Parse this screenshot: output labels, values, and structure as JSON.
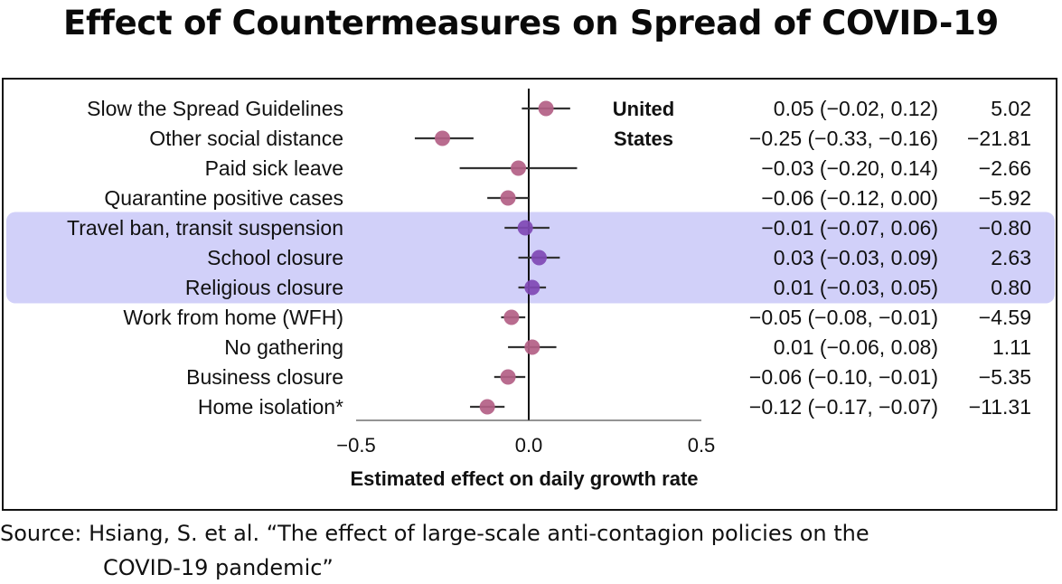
{
  "title": "Effect of Countermeasures on Spread of COVID-19",
  "source": {
    "line1": "Source: Hsiang, S. et al. “The effect of large-scale anti-contagion policies on the",
    "line2": "COVID-19 pandemic”"
  },
  "colors": {
    "point": "#b35f85",
    "point_highlight": "#7f48b4",
    "highlight_band": "#c9c8f8",
    "line": "#333333"
  },
  "chart_data": {
    "type": "forest",
    "country_label_line1": "United",
    "country_label_line2": "States",
    "xlabel": "Estimated effect on daily growth rate",
    "xlim": [
      -0.5,
      0.5
    ],
    "xticks": [
      "−0.5",
      "0.0",
      "0.5"
    ],
    "xtick_values": [
      -0.5,
      0.0,
      0.5
    ],
    "rows": [
      {
        "label": "Slow the Spread Guidelines",
        "estimate": 0.05,
        "lower": -0.02,
        "upper": 0.12,
        "ci_text": "0.05 (−0.02, 0.12)",
        "value_text": "5.02",
        "highlight": false
      },
      {
        "label": "Other social distance",
        "estimate": -0.25,
        "lower": -0.33,
        "upper": -0.16,
        "ci_text": "−0.25 (−0.33, −0.16)",
        "value_text": "−21.81",
        "highlight": false
      },
      {
        "label": "Paid sick leave",
        "estimate": -0.03,
        "lower": -0.2,
        "upper": 0.14,
        "ci_text": "−0.03 (−0.20, 0.14)",
        "value_text": "−2.66",
        "highlight": false
      },
      {
        "label": "Quarantine positive cases",
        "estimate": -0.06,
        "lower": -0.12,
        "upper": 0.0,
        "ci_text": "−0.06 (−0.12, 0.00)",
        "value_text": "−5.92",
        "highlight": false
      },
      {
        "label": "Travel ban, transit suspension",
        "estimate": -0.01,
        "lower": -0.07,
        "upper": 0.06,
        "ci_text": "−0.01 (−0.07, 0.06)",
        "value_text": "−0.80",
        "highlight": true
      },
      {
        "label": "School closure",
        "estimate": 0.03,
        "lower": -0.03,
        "upper": 0.09,
        "ci_text": "0.03 (−0.03, 0.09)",
        "value_text": "2.63",
        "highlight": true
      },
      {
        "label": "Religious closure",
        "estimate": 0.01,
        "lower": -0.03,
        "upper": 0.05,
        "ci_text": "0.01 (−0.03, 0.05)",
        "value_text": "0.80",
        "highlight": true
      },
      {
        "label": "Work from home (WFH)",
        "estimate": -0.05,
        "lower": -0.08,
        "upper": -0.01,
        "ci_text": "−0.05 (−0.08, −0.01)",
        "value_text": "−4.59",
        "highlight": false
      },
      {
        "label": "No gathering",
        "estimate": 0.01,
        "lower": -0.06,
        "upper": 0.08,
        "ci_text": "0.01 (−0.06, 0.08)",
        "value_text": "1.11",
        "highlight": false
      },
      {
        "label": "Business closure",
        "estimate": -0.06,
        "lower": -0.1,
        "upper": -0.01,
        "ci_text": "−0.06 (−0.10, −0.01)",
        "value_text": "−5.35",
        "highlight": false
      },
      {
        "label": "Home isolation*",
        "estimate": -0.12,
        "lower": -0.17,
        "upper": -0.07,
        "ci_text": "−0.12 (−0.17, −0.07)",
        "value_text": "−11.31",
        "highlight": false
      }
    ]
  }
}
